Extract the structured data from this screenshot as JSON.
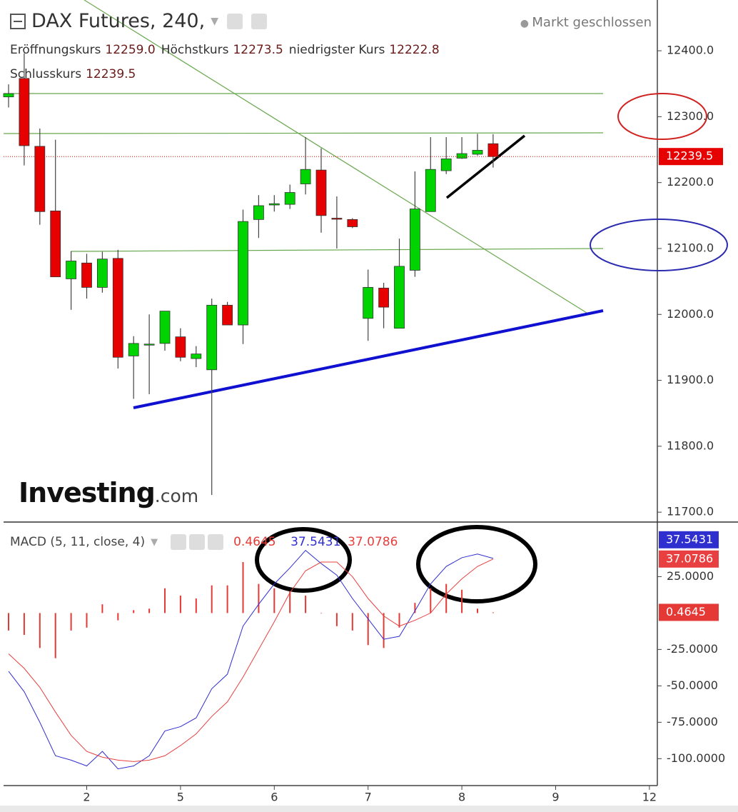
{
  "chart_data": [
    {
      "type": "candlestick",
      "title": "DAX Futures, 240,",
      "status": "Markt geschlossen",
      "info": [
        {
          "label": "Eröffnungskurs",
          "value": "12259.0"
        },
        {
          "label": "Höchstkurs",
          "value": 12273.5
        },
        {
          "label": "niedrigster Kurs",
          "value": 12222.8
        },
        {
          "label": "Schlusskurs",
          "value": 12239.5
        }
      ],
      "logo": {
        "brand": "Investing",
        "suffix": ".com"
      },
      "categories": [
        null,
        null,
        null,
        null,
        null,
        "2",
        null,
        null,
        null,
        null,
        null,
        "5",
        null,
        null,
        null,
        null,
        null,
        "6",
        null,
        null,
        null,
        null,
        null,
        "7",
        null,
        null,
        null,
        null,
        null,
        "8",
        null,
        null,
        null,
        null,
        null,
        "9",
        null,
        null,
        null,
        null,
        null,
        "12"
      ],
      "open": [
        12330,
        12358,
        12255,
        12157,
        12054,
        12078,
        12041,
        12085,
        11937,
        11954,
        11956,
        11966,
        11933,
        11916,
        12014,
        11984,
        12144,
        12166,
        12167,
        12198,
        12219,
        12146,
        12144,
        11994,
        12040,
        11979,
        12067,
        12156,
        12218,
        12237,
        12243,
        12259,
        null,
        null,
        null,
        null,
        null,
        null,
        null,
        null,
        null,
        null
      ],
      "high": [
        12349,
        12396,
        12282,
        12265,
        12096,
        12092,
        12095,
        12098,
        11967,
        12000,
        12005,
        11979,
        11952,
        12024,
        12019,
        12159,
        12181,
        12181,
        12197,
        12269,
        12252,
        12179,
        12146,
        12068,
        12048,
        12115,
        12217,
        12269,
        12269,
        12269,
        12274,
        12273.5,
        null,
        null,
        null,
        null,
        null,
        null,
        null,
        null,
        null,
        null
      ],
      "low": [
        12314,
        12226,
        12136,
        12057,
        12007,
        12024,
        12033,
        11918,
        11872,
        11879,
        11945,
        11929,
        11920,
        11726,
        11984,
        11955,
        12116,
        12156,
        12160,
        12182,
        12124,
        12100,
        12131,
        11960,
        11979,
        11979,
        12057,
        12156,
        12213,
        12236,
        12241,
        12222.8,
        null,
        null,
        null,
        null,
        null,
        null,
        null,
        null,
        null,
        null
      ],
      "close": [
        12335,
        12256,
        12156,
        12057,
        12081,
        12041,
        12084,
        11935,
        11956,
        11955,
        12005,
        11935,
        11940,
        12014,
        11984,
        12141,
        12165,
        12168,
        12185,
        12220,
        12150,
        12145,
        12133,
        12041,
        12011,
        12073,
        12160,
        12220,
        12236,
        12244,
        12249,
        12239.5,
        null,
        null,
        null,
        null,
        null,
        null,
        null,
        null,
        null,
        null
      ],
      "up_color": "#00d400",
      "down_color": "#e60000",
      "ylim": [
        11685,
        12477
      ],
      "yticks": [
        {
          "value": 11700,
          "label": "11700.0"
        },
        {
          "value": 11800,
          "label": "11800.0"
        },
        {
          "value": 11900,
          "label": "11900.0"
        },
        {
          "value": 12000,
          "label": "12000.0"
        },
        {
          "value": 12100,
          "label": "12100.0"
        },
        {
          "value": 12200,
          "label": "12200.0"
        },
        {
          "value": 12300,
          "label": "12300.0"
        },
        {
          "value": 12400,
          "label": "12400.0"
        }
      ],
      "grid": false
    },
    {
      "type": "macd",
      "title": "MACD (5, 11, close, 4)",
      "series": [
        {
          "color": "#e53935",
          "values": [
            -12,
            -15,
            -24,
            -31,
            -12,
            -10,
            6,
            -5,
            2,
            3,
            17,
            12,
            10,
            19,
            19,
            35,
            20,
            17,
            15,
            12,
            0,
            -9,
            -12,
            -22,
            -24,
            -10,
            7,
            17,
            20,
            16,
            3,
            0.4645,
            null,
            null,
            null,
            null,
            null,
            null,
            null,
            null,
            null,
            null
          ]
        },
        {
          "color": "#2f2fd0",
          "values": [
            -40,
            -54,
            -75,
            -98,
            -101,
            -105,
            -95,
            -107,
            -105,
            -98,
            -81,
            -78,
            -72,
            -52,
            -42,
            -9,
            6,
            20,
            31,
            43,
            34,
            26,
            10,
            -4,
            -18,
            -16,
            1.5,
            20,
            32,
            38,
            40.5,
            37.5431,
            null,
            null,
            null,
            null,
            null,
            null,
            null,
            null,
            null,
            null
          ]
        },
        {
          "color": "#e84040",
          "values": [
            -28,
            -38,
            -51,
            -68,
            -84,
            -95,
            -99,
            -101,
            -102,
            -101,
            -98,
            -91,
            -83,
            -71,
            -61,
            -44,
            -25,
            -6,
            14,
            29,
            35,
            35,
            25,
            10,
            -2,
            -9,
            -5,
            0,
            13,
            23.5,
            32,
            37.0786,
            null,
            null,
            null,
            null,
            null,
            null,
            null,
            null,
            null,
            null
          ]
        }
      ],
      "ylim": [
        -117.5,
        61.5
      ],
      "yticks": [
        {
          "value": -100,
          "label": "-100.0000"
        },
        {
          "value": -75,
          "label": "-75.0000"
        },
        {
          "value": -50,
          "label": "-50.0000"
        },
        {
          "value": -25,
          "label": "-25.0000"
        },
        {
          "value": 25,
          "label": "25.0000"
        }
      ],
      "grid": false
    }
  ]
}
